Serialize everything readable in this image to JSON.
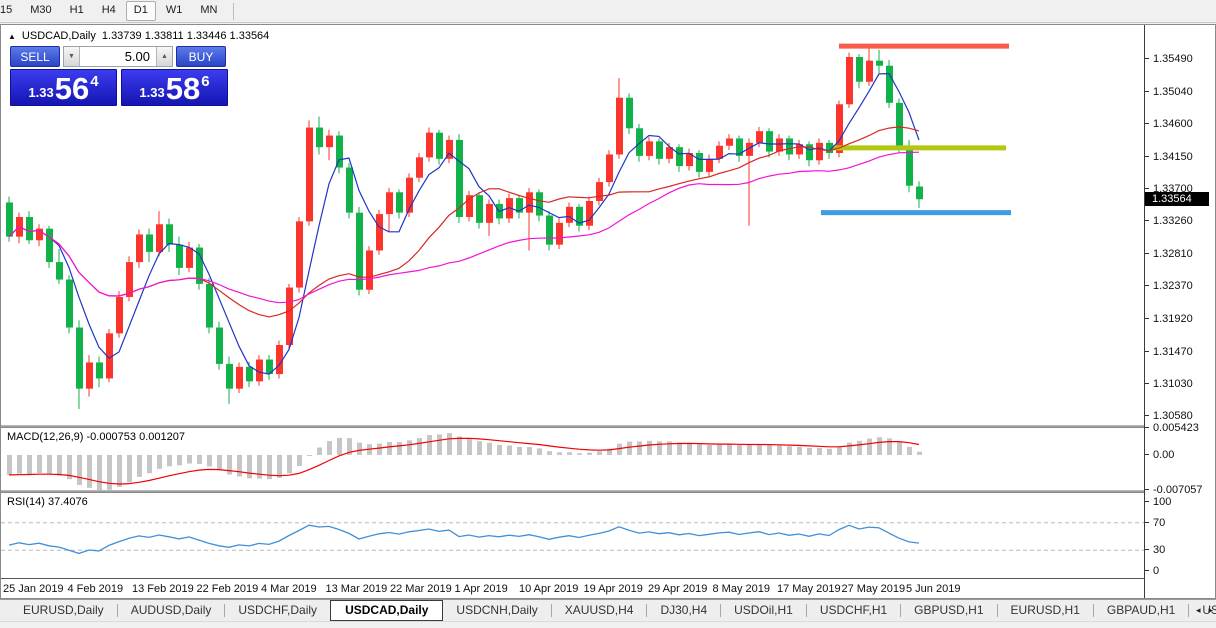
{
  "toolbar": {
    "timeframes": [
      "15",
      "M30",
      "H1",
      "H4",
      "D1",
      "W1",
      "MN"
    ],
    "active_timeframe": "D1"
  },
  "chart": {
    "header": {
      "collapse_icon": "▲",
      "symbol_label": "USDCAD,Daily",
      "ohlc_values": "1.33739 1.33811 1.33446 1.33564"
    },
    "trade_panel": {
      "sell_label": "SELL",
      "buy_label": "BUY",
      "volume": "5.00",
      "spinner_down_icon": "▼",
      "spinner_up_icon": "▲",
      "sell_price": {
        "prefix": "1.33",
        "digits": "56",
        "sup": "4"
      },
      "buy_price": {
        "prefix": "1.33",
        "digits": "58",
        "sup": "6"
      }
    }
  },
  "macd_panel": {
    "label": "MACD(12,26,9)",
    "values": "-0.000753 0.001207"
  },
  "rsi_panel": {
    "label": "RSI(14)",
    "value": "37.4076"
  },
  "tabs": {
    "items": [
      "EURUSD,Daily",
      "AUDUSD,Daily",
      "USDCHF,Daily",
      "USDCAD,Daily",
      "USDCNH,Daily",
      "XAUUSD,H4",
      "DJ30,H4",
      "USDOil,H1",
      "USDCHF,H1",
      "GBPUSD,H1",
      "EURUSD,H1",
      "GBPAUD,H1",
      "USDJP"
    ],
    "active_index": 3,
    "left_arrow": "◂",
    "right_arrow": "▸"
  },
  "chart_data": {
    "type": "candlestick",
    "symbol": "USDCAD",
    "timeframe": "Daily",
    "ylim": [
      1.3046,
      1.3596
    ],
    "up_color": "#fb342c",
    "down_color": "#12b24a",
    "price_ticks": [
      "1.35490",
      "1.35040",
      "1.34600",
      "1.34150",
      "1.33700",
      "1.33260",
      "1.32810",
      "1.32370",
      "1.31920",
      "1.31470",
      "1.31030",
      "1.30580"
    ],
    "current_price": "1.33564",
    "current_price_value": 1.33564,
    "dates": [
      "25 Jan 2019",
      "4 Feb 2019",
      "13 Feb 2019",
      "22 Feb 2019",
      "4 Mar 2019",
      "13 Mar 2019",
      "22 Mar 2019",
      "1 Apr 2019",
      "10 Apr 2019",
      "19 Apr 2019",
      "29 Apr 2019",
      "8 May 2019",
      "17 May 2019",
      "27 May 2019",
      "5 Jun 2019"
    ],
    "levels": [
      {
        "name": "resistance-line",
        "price": 1.3567,
        "x1": 838,
        "x2": 1008,
        "color": "#f95a4a",
        "width": 5
      },
      {
        "name": "mid-line",
        "price": 1.3427,
        "x1": 832,
        "x2": 1005,
        "color": "#b2c80e",
        "width": 5
      },
      {
        "name": "support-line",
        "price": 1.3338,
        "x1": 820,
        "x2": 1010,
        "color": "#3d9de0",
        "width": 5
      }
    ],
    "moving_averages": [
      {
        "period": 5,
        "color": "#1f35c4"
      },
      {
        "period": 20,
        "color": "#d92626"
      },
      {
        "period": 40,
        "color": "#f313d8"
      }
    ],
    "candles": [
      [
        1.3352,
        1.336,
        1.3298,
        1.3305
      ],
      [
        1.3305,
        1.3338,
        1.3296,
        1.3332
      ],
      [
        1.3332,
        1.334,
        1.3295,
        1.33
      ],
      [
        1.33,
        1.3322,
        1.3292,
        1.3316
      ],
      [
        1.3316,
        1.332,
        1.3262,
        1.327
      ],
      [
        1.327,
        1.3288,
        1.324,
        1.3246
      ],
      [
        1.3246,
        1.3252,
        1.3172,
        1.318
      ],
      [
        1.318,
        1.319,
        1.3068,
        1.3096
      ],
      [
        1.3096,
        1.3142,
        1.3085,
        1.3132
      ],
      [
        1.3132,
        1.314,
        1.3098,
        1.311
      ],
      [
        1.311,
        1.3178,
        1.3105,
        1.3172
      ],
      [
        1.3172,
        1.323,
        1.3166,
        1.3222
      ],
      [
        1.3222,
        1.3278,
        1.3216,
        1.327
      ],
      [
        1.327,
        1.3315,
        1.3262,
        1.3308
      ],
      [
        1.3308,
        1.3316,
        1.327,
        1.3284
      ],
      [
        1.3284,
        1.334,
        1.3278,
        1.3322
      ],
      [
        1.3322,
        1.333,
        1.3284,
        1.3294
      ],
      [
        1.3294,
        1.3305,
        1.3252,
        1.3262
      ],
      [
        1.3262,
        1.3298,
        1.3256,
        1.329
      ],
      [
        1.329,
        1.3295,
        1.3232,
        1.324
      ],
      [
        1.324,
        1.3248,
        1.3172,
        1.318
      ],
      [
        1.318,
        1.3188,
        1.3122,
        1.313
      ],
      [
        1.313,
        1.314,
        1.3075,
        1.3096
      ],
      [
        1.3096,
        1.3132,
        1.309,
        1.3126
      ],
      [
        1.3126,
        1.3133,
        1.3098,
        1.3106
      ],
      [
        1.3106,
        1.3142,
        1.31,
        1.3136
      ],
      [
        1.3136,
        1.3142,
        1.3108,
        1.3116
      ],
      [
        1.3116,
        1.3162,
        1.311,
        1.3156
      ],
      [
        1.3156,
        1.324,
        1.315,
        1.3235
      ],
      [
        1.3235,
        1.3332,
        1.3228,
        1.3326
      ],
      [
        1.3326,
        1.3465,
        1.332,
        1.3455
      ],
      [
        1.3455,
        1.347,
        1.3418,
        1.3428
      ],
      [
        1.3428,
        1.3452,
        1.341,
        1.3444
      ],
      [
        1.3444,
        1.345,
        1.3392,
        1.34
      ],
      [
        1.34,
        1.3406,
        1.333,
        1.3338
      ],
      [
        1.3338,
        1.3346,
        1.3224,
        1.3232
      ],
      [
        1.3232,
        1.3292,
        1.3226,
        1.3286
      ],
      [
        1.3286,
        1.3342,
        1.328,
        1.3336
      ],
      [
        1.3336,
        1.3372,
        1.3312,
        1.3366
      ],
      [
        1.3366,
        1.337,
        1.333,
        1.3338
      ],
      [
        1.3338,
        1.3392,
        1.3332,
        1.3386
      ],
      [
        1.3386,
        1.342,
        1.338,
        1.3414
      ],
      [
        1.3414,
        1.3455,
        1.3408,
        1.3448
      ],
      [
        1.3448,
        1.3452,
        1.3404,
        1.3412
      ],
      [
        1.3412,
        1.3444,
        1.3406,
        1.3438
      ],
      [
        1.3438,
        1.3446,
        1.3324,
        1.3332
      ],
      [
        1.3332,
        1.3368,
        1.3326,
        1.3362
      ],
      [
        1.3362,
        1.3366,
        1.3316,
        1.3324
      ],
      [
        1.3324,
        1.3356,
        1.3306,
        1.335
      ],
      [
        1.335,
        1.3356,
        1.3322,
        1.333
      ],
      [
        1.333,
        1.3364,
        1.3324,
        1.3358
      ],
      [
        1.3358,
        1.3362,
        1.333,
        1.3338
      ],
      [
        1.3338,
        1.3372,
        1.3286,
        1.3366
      ],
      [
        1.3366,
        1.337,
        1.3326,
        1.3334
      ],
      [
        1.3334,
        1.334,
        1.3286,
        1.3294
      ],
      [
        1.3294,
        1.333,
        1.3288,
        1.3324
      ],
      [
        1.3324,
        1.3352,
        1.3318,
        1.3346
      ],
      [
        1.3346,
        1.335,
        1.3312,
        1.332
      ],
      [
        1.332,
        1.336,
        1.3314,
        1.3354
      ],
      [
        1.3354,
        1.3386,
        1.3348,
        1.338
      ],
      [
        1.338,
        1.3424,
        1.3374,
        1.3418
      ],
      [
        1.3418,
        1.3523,
        1.3412,
        1.3496
      ],
      [
        1.3496,
        1.3502,
        1.3446,
        1.3454
      ],
      [
        1.3454,
        1.346,
        1.3408,
        1.3416
      ],
      [
        1.3416,
        1.3442,
        1.341,
        1.3436
      ],
      [
        1.3436,
        1.344,
        1.3404,
        1.3412
      ],
      [
        1.3412,
        1.3434,
        1.3406,
        1.3428
      ],
      [
        1.3428,
        1.3432,
        1.3394,
        1.3402
      ],
      [
        1.3402,
        1.3426,
        1.3396,
        1.342
      ],
      [
        1.342,
        1.3424,
        1.3386,
        1.3394
      ],
      [
        1.3394,
        1.3418,
        1.3388,
        1.3412
      ],
      [
        1.3412,
        1.3436,
        1.3406,
        1.343
      ],
      [
        1.343,
        1.3446,
        1.3424,
        1.344
      ],
      [
        1.344,
        1.3444,
        1.3408,
        1.3416
      ],
      [
        1.3416,
        1.344,
        1.332,
        1.3434
      ],
      [
        1.3434,
        1.3456,
        1.3428,
        1.345
      ],
      [
        1.345,
        1.3454,
        1.3414,
        1.3422
      ],
      [
        1.3422,
        1.3446,
        1.3416,
        1.344
      ],
      [
        1.344,
        1.3444,
        1.341,
        1.3418
      ],
      [
        1.3418,
        1.3438,
        1.3412,
        1.3432
      ],
      [
        1.3432,
        1.3436,
        1.3402,
        1.341
      ],
      [
        1.341,
        1.344,
        1.3404,
        1.3434
      ],
      [
        1.3434,
        1.3438,
        1.3412,
        1.342
      ],
      [
        1.342,
        1.3492,
        1.3414,
        1.3487
      ],
      [
        1.3487,
        1.3558,
        1.3482,
        1.3552
      ],
      [
        1.3552,
        1.3556,
        1.3509,
        1.3518
      ],
      [
        1.3518,
        1.3565,
        1.3512,
        1.3547
      ],
      [
        1.3547,
        1.3562,
        1.353,
        1.354
      ],
      [
        1.354,
        1.3548,
        1.3482,
        1.3489
      ],
      [
        1.3489,
        1.3495,
        1.342,
        1.3428
      ],
      [
        1.3428,
        1.3438,
        1.3366,
        1.3375
      ],
      [
        1.33739,
        1.33811,
        1.33446,
        1.33564
      ]
    ],
    "macd": {
      "params": "12,26,9",
      "ylim": [
        -0.007057,
        0.005423
      ],
      "ticks": [
        "0.005423",
        "0.00",
        "-0.007057"
      ],
      "hist_color": "#c6c6c6",
      "signal_color": "#f00000"
    },
    "rsi": {
      "period": 14,
      "ylim": [
        0,
        100
      ],
      "ticks": [
        "100",
        "70",
        "30",
        "0"
      ],
      "levels": [
        70,
        30
      ],
      "color": "#4090d8",
      "level_color": "#bcbcbc"
    }
  }
}
